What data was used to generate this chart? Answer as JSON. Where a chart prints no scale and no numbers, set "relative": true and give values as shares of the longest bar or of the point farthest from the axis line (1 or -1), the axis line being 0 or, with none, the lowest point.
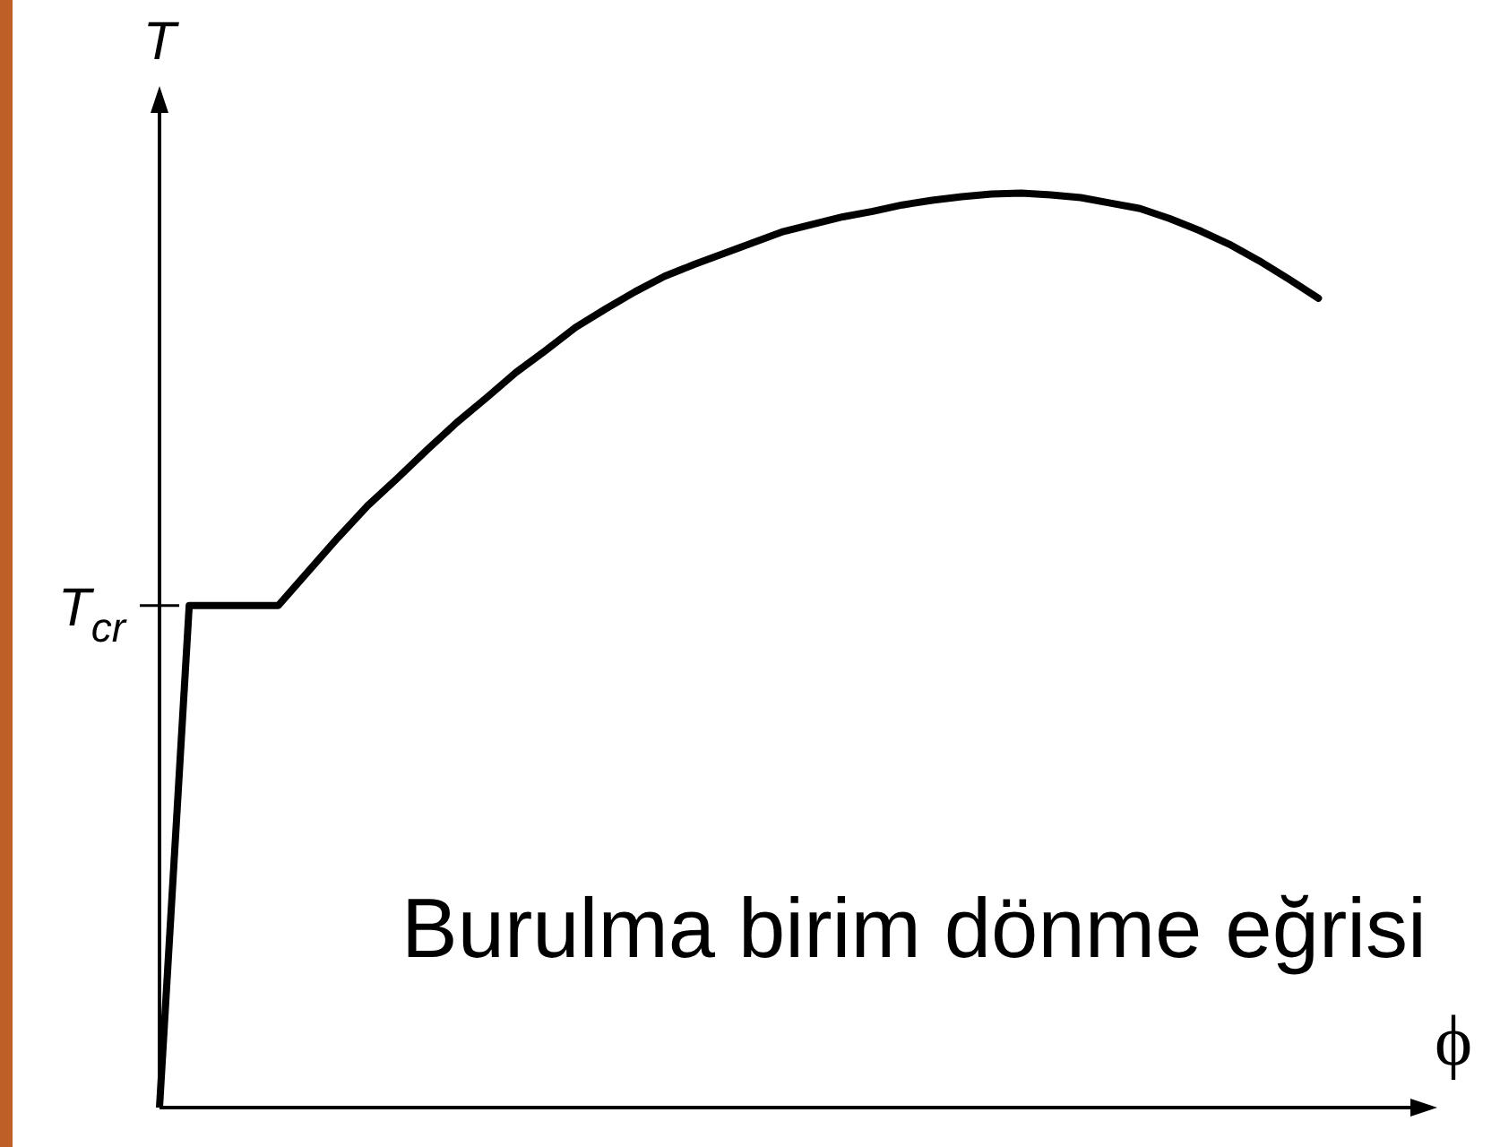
{
  "chart_data": {
    "type": "line",
    "ylabel": "T",
    "xlabel": "ϕ",
    "annotations": [
      "Burulma birim dönme eğrisi"
    ],
    "ref_lines": [
      {
        "axis": "y",
        "value": 0.549,
        "label": "T$_{cr}$"
      }
    ],
    "categories": [
      null,
      null,
      null,
      null,
      null,
      null,
      null,
      null,
      null,
      null,
      null,
      null,
      null,
      null,
      null,
      null,
      null,
      null,
      null,
      null,
      null,
      null,
      null,
      null,
      null,
      null,
      null,
      null,
      null,
      null,
      null,
      null,
      null,
      null,
      null,
      null,
      null,
      null,
      null,
      null,
      null,
      null,
      null,
      null
    ],
    "values": [
      0,
      0.549,
      0.549,
      0.549,
      0.549,
      0.586,
      0.623,
      0.658,
      0.688,
      0.719,
      0.749,
      0.776,
      0.804,
      0.828,
      0.853,
      0.873,
      0.892,
      0.909,
      0.922,
      0.934,
      0.946,
      0.958,
      0.966,
      0.974,
      0.98,
      0.987,
      0.992,
      0.996,
      0.999,
      1,
      0.998,
      0.995,
      0.989,
      0.983,
      0.972,
      0.959,
      0.944,
      0.926,
      0.906,
      0.885,
      null,
      null,
      null,
      null
    ],
    "color": "#000000",
    "relative": true,
    "marker": "none",
    "legend": false,
    "grid": false
  }
}
